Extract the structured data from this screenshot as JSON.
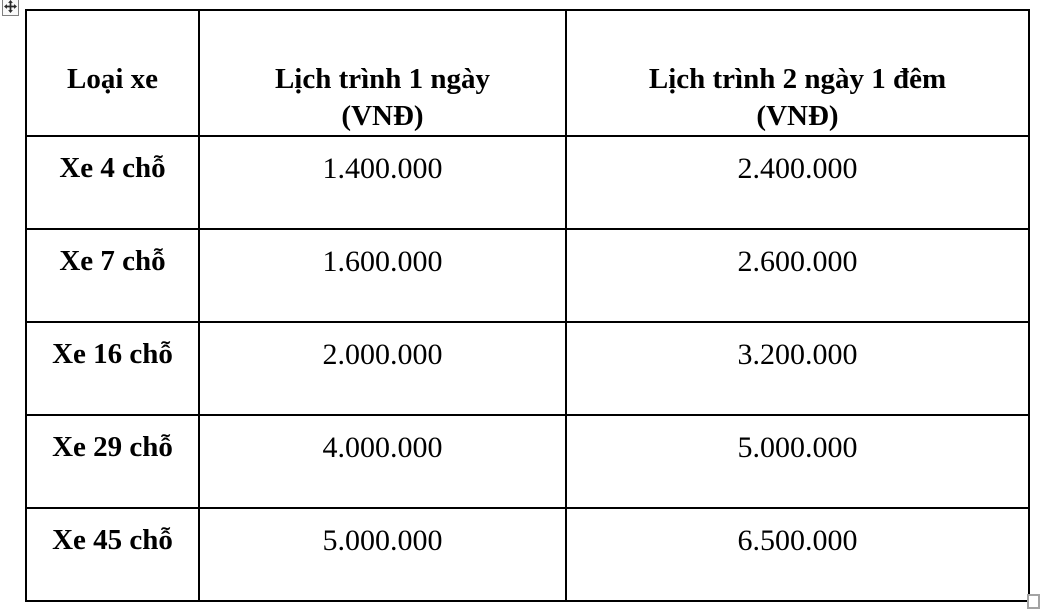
{
  "document": {
    "type": "word-processor-table-view"
  },
  "icons": {
    "table_move_handle": "four-way-move-arrow-icon",
    "table_resize_handle": "open-square-resize-icon"
  },
  "colors": {
    "table_border": "#000000",
    "text": "#000000",
    "handle_border": "#a3a3a3",
    "background": "#ffffff"
  },
  "table": {
    "columns": [
      {
        "label": "Loại xe"
      },
      {
        "label": "Lịch trình 1 ngày\n(VNĐ)"
      },
      {
        "label": "Lịch trình 2 ngày 1 đêm\n(VNĐ)"
      }
    ],
    "rows": [
      {
        "type": "Xe 4 chỗ",
        "price_1day": "1.400.000",
        "price_2day": "2.400.000"
      },
      {
        "type": "Xe 7 chỗ",
        "price_1day": "1.600.000",
        "price_2day": "2.600.000"
      },
      {
        "type": "Xe 16 chỗ",
        "price_1day": "2.000.000",
        "price_2day": "3.200.000"
      },
      {
        "type": "Xe 29 chỗ",
        "price_1day": "4.000.000",
        "price_2day": "5.000.000"
      },
      {
        "type": "Xe 45 chỗ",
        "price_1day": "5.000.000",
        "price_2day": "6.500.000"
      }
    ]
  }
}
